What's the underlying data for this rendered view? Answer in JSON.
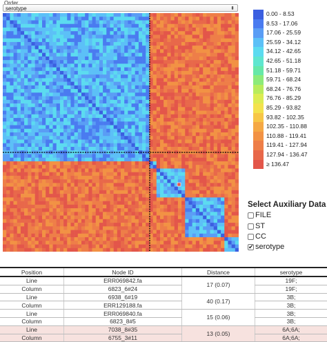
{
  "order": {
    "label": "Order",
    "selected": "serotype"
  },
  "legend": {
    "items": [
      {
        "label": "0.00 - 8.53",
        "color": "#3b5fe0"
      },
      {
        "label": "8.53 - 17.06",
        "color": "#4a7bf0"
      },
      {
        "label": "17.06 - 25.59",
        "color": "#5a9df5"
      },
      {
        "label": "25.59 - 34.12",
        "color": "#5cc0f7"
      },
      {
        "label": "34.12 - 42.65",
        "color": "#5cdbf0"
      },
      {
        "label": "42.65 - 51.18",
        "color": "#5fe6cf"
      },
      {
        "label": "51.18 - 59.71",
        "color": "#66e8a8"
      },
      {
        "label": "59.71 - 68.24",
        "color": "#8ceb7a"
      },
      {
        "label": "68.24 - 76.76",
        "color": "#b8ec5c"
      },
      {
        "label": "76.76 - 85.29",
        "color": "#dcec52"
      },
      {
        "label": "85.29 - 93.82",
        "color": "#f3e24d"
      },
      {
        "label": "93.82 - 102.35",
        "color": "#f7c646"
      },
      {
        "label": "102.35 - 110.88",
        "color": "#f5a844"
      },
      {
        "label": "110.88 - 119.41",
        "color": "#f29244"
      },
      {
        "label": "119.41 - 127.94",
        "color": "#ee7e48"
      },
      {
        "label": "127.94 - 136.47",
        "color": "#e8684a"
      },
      {
        "label": "≥ 136.47",
        "color": "#e3564a"
      }
    ]
  },
  "auxiliary": {
    "title": "Select Auxiliary Data",
    "options": [
      {
        "label": "FILE",
        "checked": false
      },
      {
        "label": "ST",
        "checked": false
      },
      {
        "label": "CC",
        "checked": false
      },
      {
        "label": "serotype",
        "checked": true
      }
    ]
  },
  "table": {
    "headers": [
      "Position",
      "Node ID",
      "Distance",
      "serotype"
    ],
    "rows": [
      {
        "position": "Line",
        "node": "ERR069842.fa",
        "distance": "17 (0.07)",
        "serotype": "19F;"
      },
      {
        "position": "Column",
        "node": "6823_6#24",
        "distance": "",
        "serotype": "19F;"
      },
      {
        "position": "Line",
        "node": "6938_6#19",
        "distance": "40 (0.17)",
        "serotype": "3B;"
      },
      {
        "position": "Column",
        "node": "ERR129188.fa",
        "distance": "",
        "serotype": "3B;"
      },
      {
        "position": "Line",
        "node": "ERR069840.fa",
        "distance": "15 (0.06)",
        "serotype": "3B;"
      },
      {
        "position": "Column",
        "node": "6823_8#5",
        "distance": "",
        "serotype": "3B;"
      },
      {
        "position": "Line",
        "node": "7038_8#35",
        "distance": "13 (0.05)",
        "serotype": "6A;6A;"
      },
      {
        "position": "Column",
        "node": "6755_3#11",
        "distance": "",
        "serotype": "6A;6A;"
      }
    ]
  }
}
